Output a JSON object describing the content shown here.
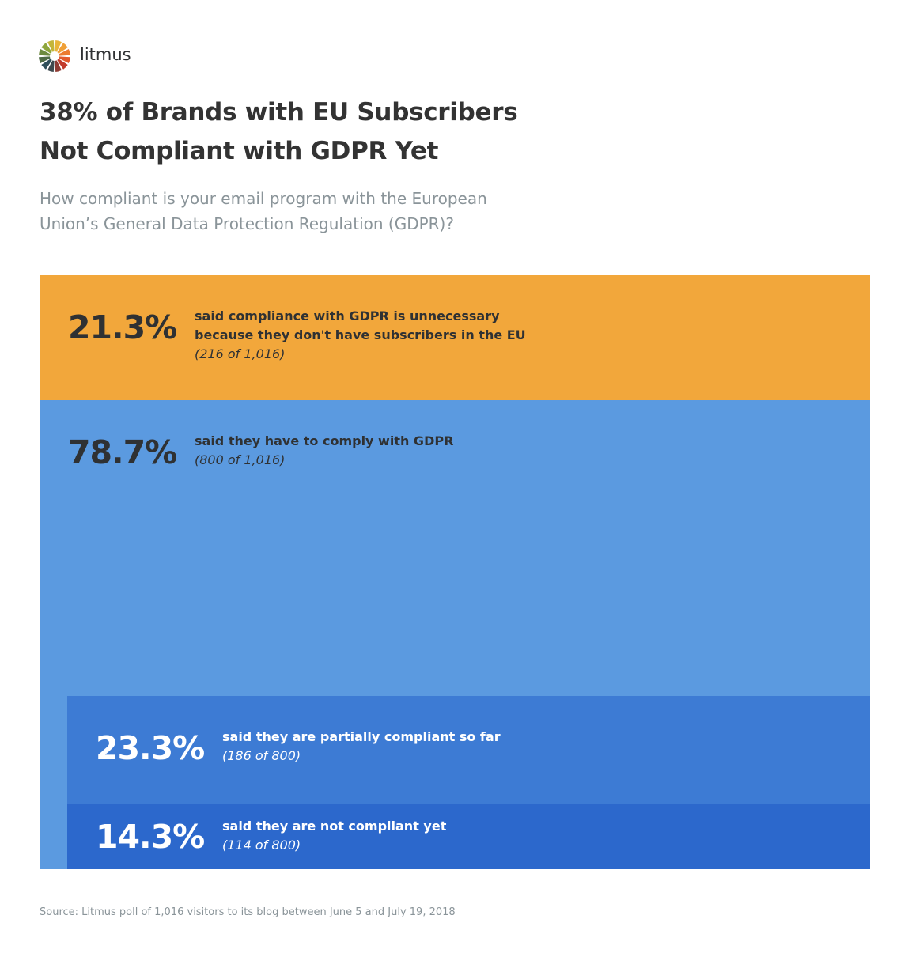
{
  "brand": {
    "name": "litmus"
  },
  "header": {
    "title_lines": [
      "38% of Brands with EU Subscribers",
      "Not Compliant with GDPR Yet"
    ],
    "subtitle_lines": [
      "How compliant is your email program with the European",
      "Union’s General Data Protection Regulation (GDPR)?"
    ]
  },
  "blocks": [
    {
      "percent": "21.3%",
      "lines": [
        "said compliance with GDPR is unnecessary",
        "because they don't have subscribers in the EU"
      ],
      "count": "(216 of 1,016)"
    },
    {
      "percent": "78.7%",
      "lines": [
        "said they have to comply with GDPR"
      ],
      "count": "(800 of 1,016)"
    },
    {
      "percent": "23.3%",
      "lines": [
        "said they are partially compliant so far"
      ],
      "count": "(186 of 800)"
    },
    {
      "percent": "14.3%",
      "lines": [
        "said they are not compliant yet"
      ],
      "count": "(114 of 800)"
    }
  ],
  "footer": {
    "source": "Source: Litmus poll of 1,016 visitors to its blog between June 5 and July 19, 2018"
  }
}
